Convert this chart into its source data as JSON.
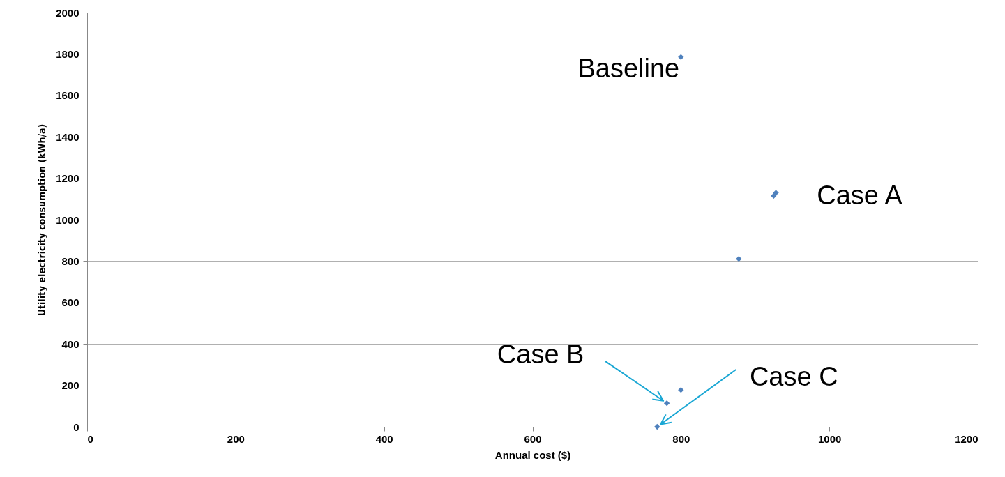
{
  "chart_data": {
    "type": "scatter",
    "x": [
      800,
      925,
      928,
      878,
      800,
      781,
      768
    ],
    "values": [
      1785,
      1115,
      1130,
      811,
      178,
      114,
      0
    ],
    "color": "#4f81bd",
    "marker": "diamond",
    "xlabel": "Annual cost ($)",
    "ylabel": "Utility electricity consumption (kWh/a)",
    "xlim": [
      0,
      1200
    ],
    "xticks": [
      0,
      200,
      400,
      600,
      800,
      1000,
      1200
    ],
    "ylim": [
      0,
      2000
    ],
    "yticks": [
      0,
      200,
      400,
      600,
      800,
      1000,
      1200,
      1400,
      1600,
      1800,
      2000
    ],
    "grid": "y",
    "annotations": [
      {
        "text": "Baseline",
        "x": 800,
        "y": 1785
      },
      {
        "text": "Case A",
        "x": 928,
        "y": 1130
      },
      {
        "text": "Case B",
        "x": 781,
        "y": 114
      },
      {
        "text": "Case C",
        "x": 768,
        "y": 0
      }
    ]
  }
}
